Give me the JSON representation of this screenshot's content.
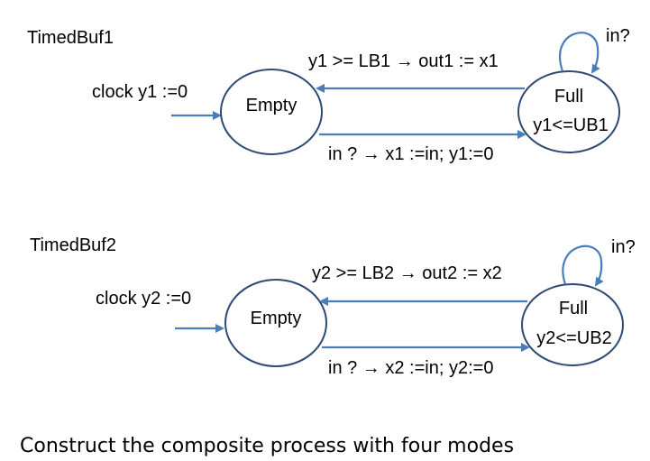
{
  "colors": {
    "arrow": "#4a7ebb",
    "node_outline": "#2e4a73",
    "text": "#000000",
    "background": "#ffffff"
  },
  "automata": [
    {
      "name": "TimedBuf1",
      "init_label": "clock y1 :=0",
      "empty_label": "Empty",
      "full_label": "Full",
      "full_invariant": "y1<=UB1",
      "out_edge_label": "y1 >= LB1 → out1 := x1",
      "in_edge_label": "in ? → x1 :=in; y1:=0",
      "self_loop_label": "in?"
    },
    {
      "name": "TimedBuf2",
      "init_label": "clock y2 :=0",
      "empty_label": "Empty",
      "full_label": "Full",
      "full_invariant": "y2<=UB2",
      "out_edge_label": "y2 >= LB2 → out2 := x2",
      "in_edge_label": "in ? → x2 :=in; y2:=0",
      "self_loop_label": "in?"
    }
  ],
  "footer": "Construct the composite process with four modes"
}
